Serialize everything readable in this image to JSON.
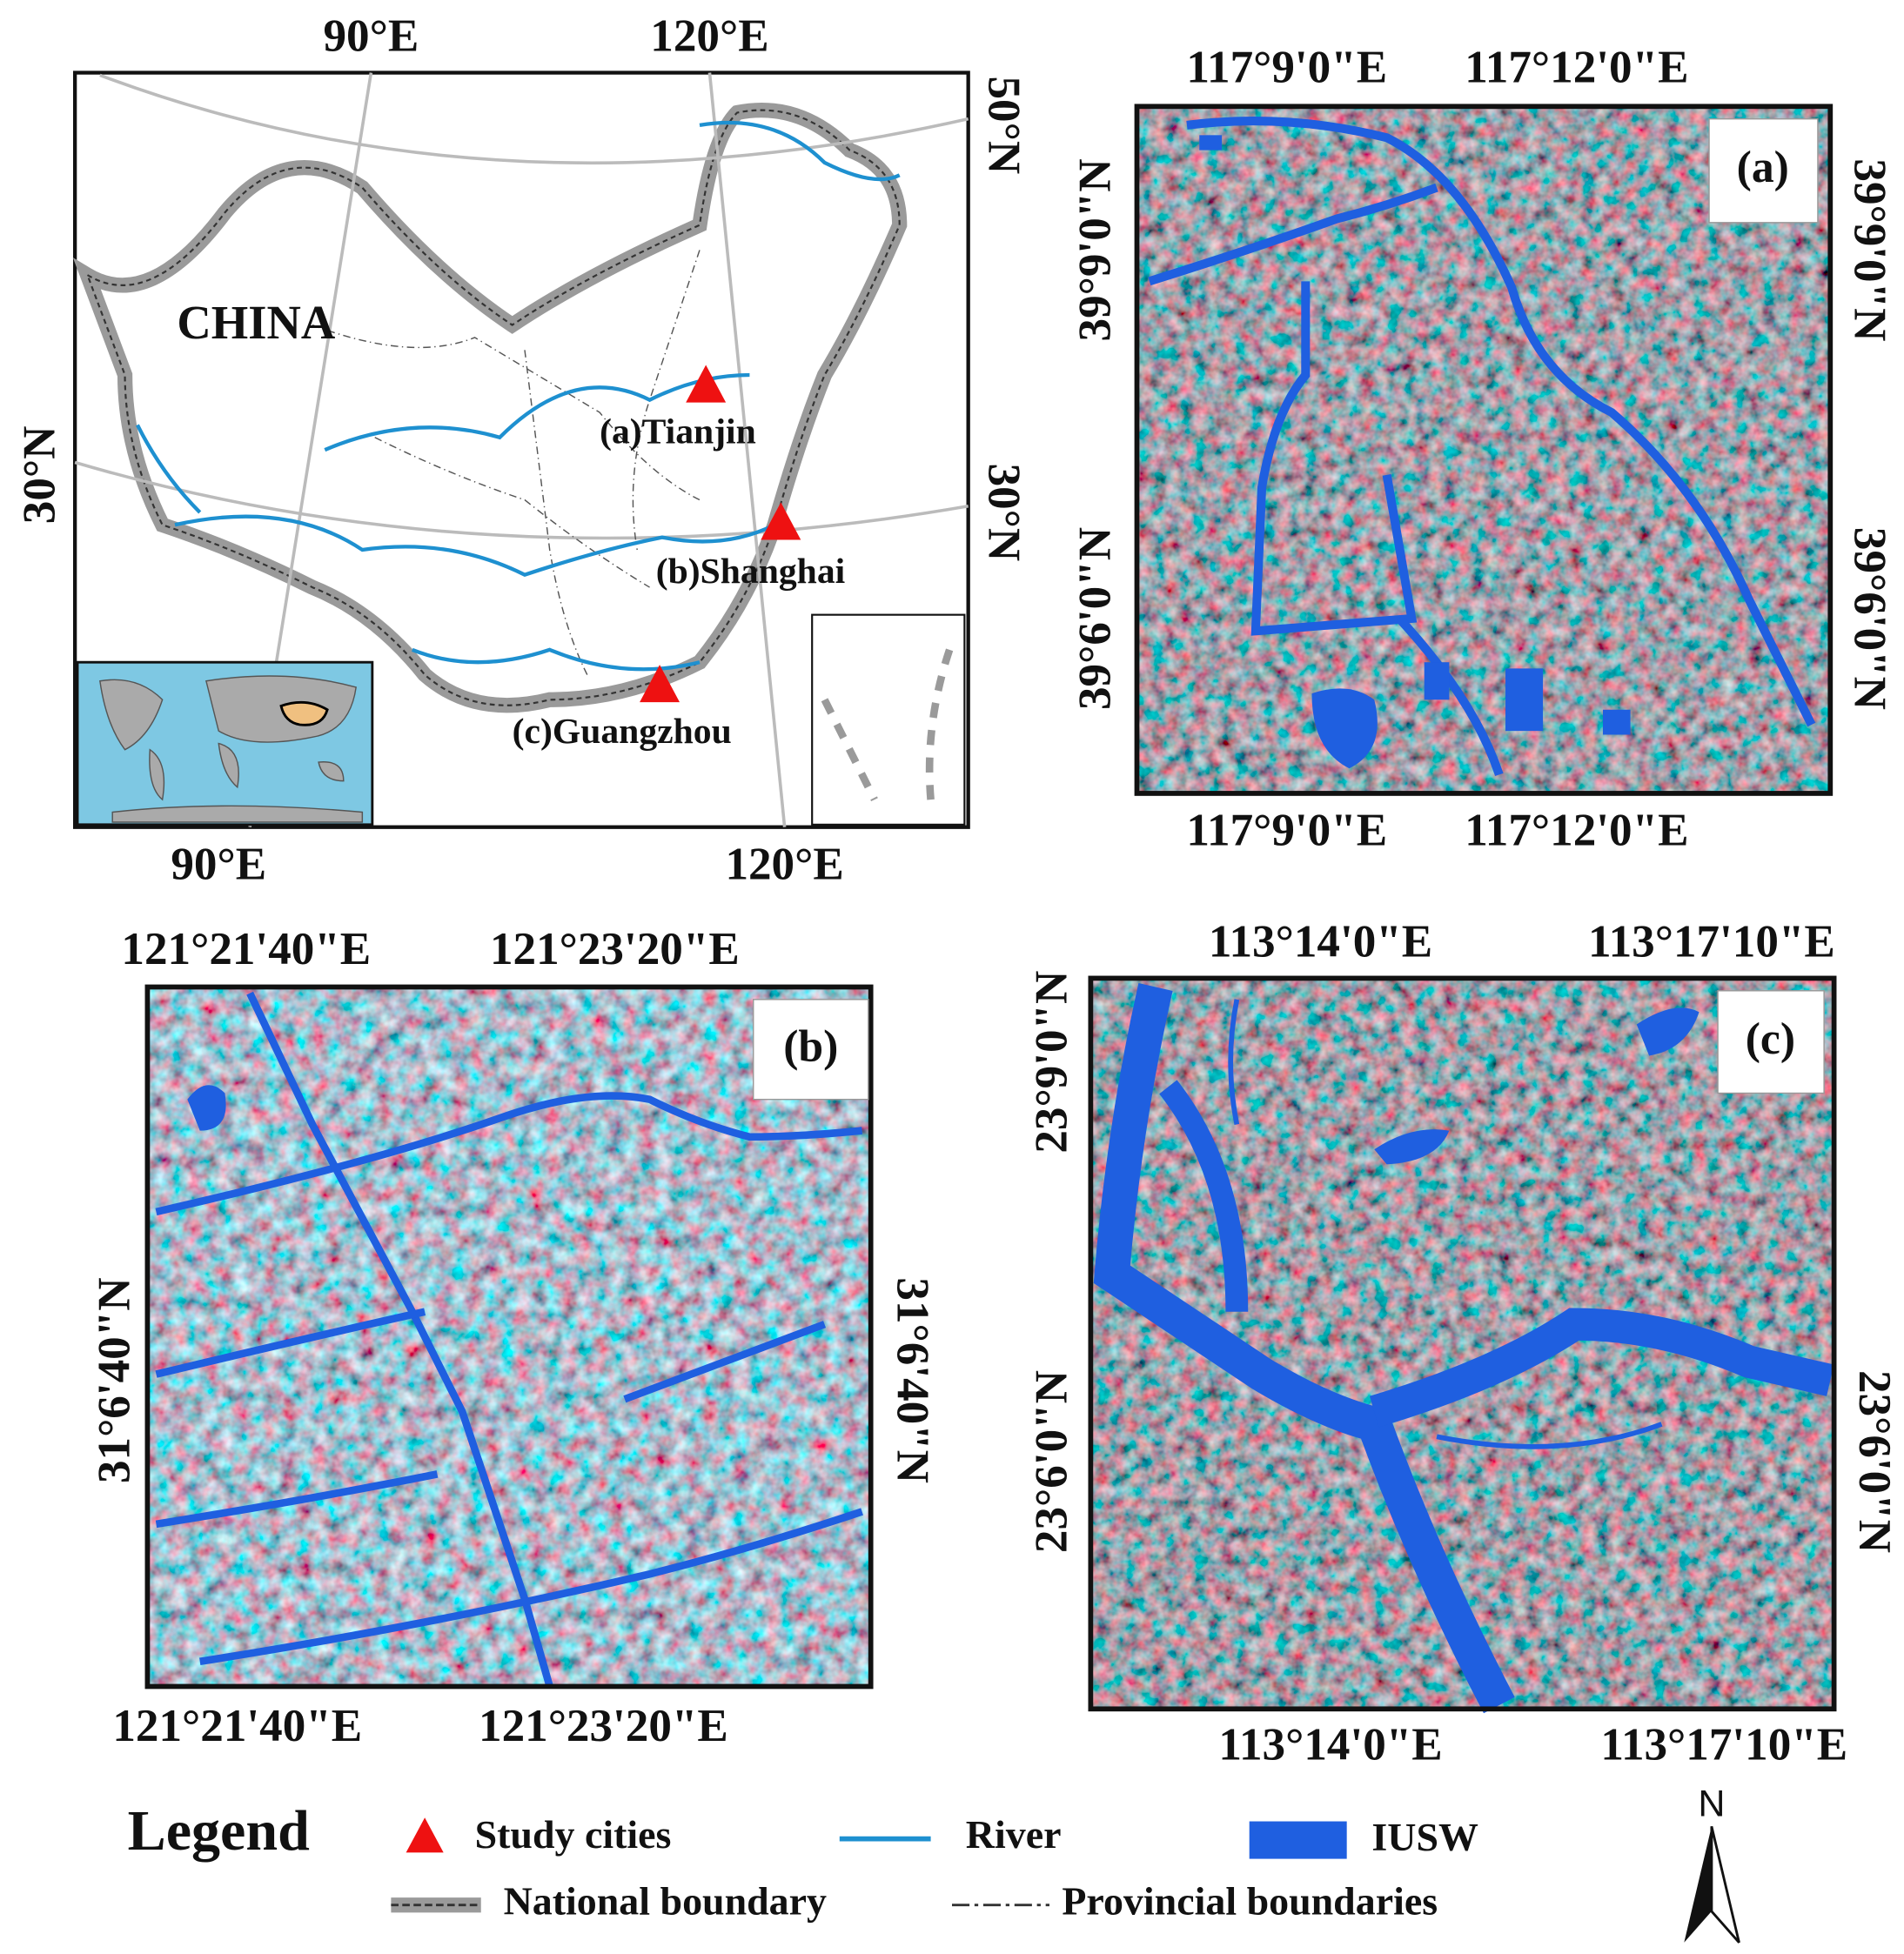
{
  "overview": {
    "label": "CHINA",
    "top_ticks": [
      "90°E",
      "120°E"
    ],
    "bottom_ticks": [
      "90°E",
      "120°E"
    ],
    "left_ticks": [
      "30°N"
    ],
    "right_ticks": [
      "50°N",
      "30°N"
    ],
    "cities": [
      "(a)Tianjin",
      "(b)Shanghai",
      "(c)Guangzhou"
    ]
  },
  "panels": [
    {
      "label": "(a)",
      "top_ticks": [
        "117°9'0\"E",
        "117°12'0\"E"
      ],
      "bottom_ticks": [
        "117°9'0\"E",
        "117°12'0\"E"
      ],
      "left_ticks": [
        "39°9'0\"N",
        "39°6'0\"N"
      ],
      "right_ticks": [
        "39°9'0\"N",
        "39°6'0\"N"
      ]
    },
    {
      "label": "(b)",
      "top_ticks": [
        "121°21'40\"E",
        "121°23'20\"E"
      ],
      "bottom_ticks": [
        "121°21'40\"E",
        "121°23'20\"E"
      ],
      "left_ticks": [
        "31°6'40\"N"
      ],
      "right_ticks": [
        "31°6'40\"N"
      ]
    },
    {
      "label": "(c)",
      "top_ticks": [
        "113°14'0\"E",
        "113°17'10\"E"
      ],
      "bottom_ticks": [
        "113°14'0\"E",
        "113°17'10\"E"
      ],
      "left_ticks": [
        "23°9'0\"N",
        "23°6'0\"N"
      ],
      "right_ticks": [
        "23°6'0\"N"
      ]
    }
  ],
  "legend": {
    "title": "Legend",
    "items": [
      "Study cities",
      "River",
      "IUSW",
      "National boundary",
      "Provincial boundaries"
    ]
  },
  "north_arrow": "N"
}
